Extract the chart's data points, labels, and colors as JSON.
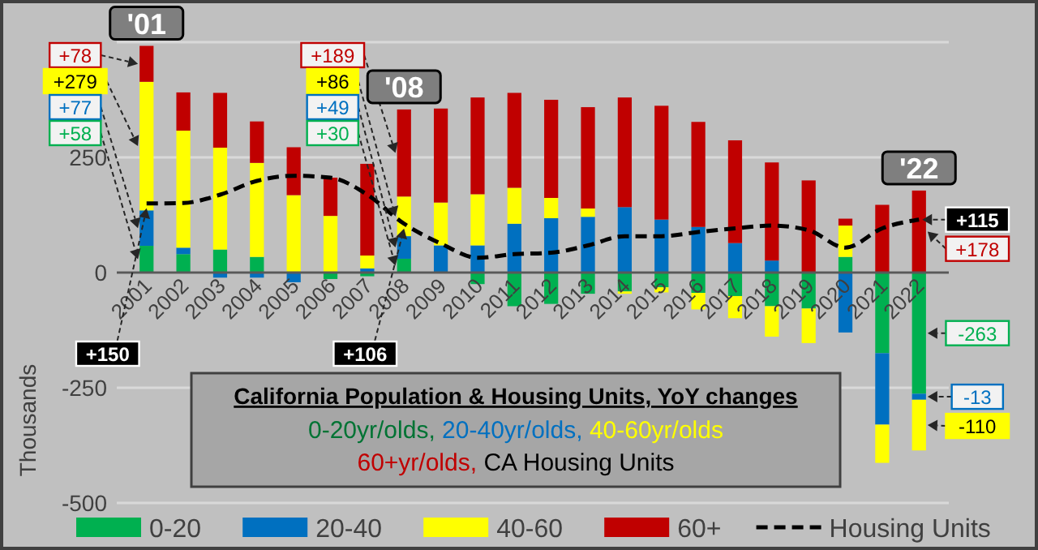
{
  "chart_data": {
    "type": "bar",
    "stacked": true,
    "title": "California Population & Housing Units, YoY changes",
    "ylabel": "Thousands",
    "categories": [
      "2001",
      "2002",
      "2003",
      "2004",
      "2005",
      "2006",
      "2007",
      "2008",
      "2009",
      "2010",
      "2011",
      "2012",
      "2013",
      "2014",
      "2015",
      "2016",
      "2017",
      "2018",
      "2019",
      "2020",
      "2021",
      "2022"
    ],
    "series": [
      {
        "name": "0-20",
        "color": "#00b050",
        "values": [
          58,
          40,
          50,
          34,
          0,
          -14,
          -8,
          30,
          0,
          -25,
          -73,
          -68,
          -46,
          -41,
          -32,
          -44,
          -51,
          -73,
          -78,
          34,
          -175,
          -263
        ],
        "value_labels": [
          "+58",
          null,
          null,
          null,
          null,
          null,
          null,
          "+30",
          null,
          null,
          null,
          null,
          null,
          null,
          null,
          null,
          null,
          null,
          null,
          null,
          null,
          "-263"
        ]
      },
      {
        "name": "20-40",
        "color": "#0070c0",
        "values": [
          77,
          14,
          -11,
          -11,
          -21,
          0,
          9,
          49,
          59,
          59,
          106,
          118,
          121,
          142,
          115,
          99,
          64,
          26,
          0,
          -130,
          -155,
          -13
        ],
        "value_labels": [
          "+77",
          null,
          null,
          null,
          null,
          null,
          null,
          "+49",
          null,
          null,
          null,
          null,
          null,
          null,
          null,
          null,
          null,
          null,
          null,
          null,
          null,
          "-13"
        ]
      },
      {
        "name": "40-60",
        "color": "#ffff00",
        "values": [
          279,
          254,
          221,
          204,
          168,
          123,
          28,
          86,
          93,
          111,
          78,
          44,
          18,
          -5,
          -11,
          -36,
          -48,
          -66,
          -75,
          68,
          -83,
          -110
        ],
        "value_labels": [
          "+279",
          null,
          null,
          null,
          null,
          null,
          null,
          "+86",
          null,
          null,
          null,
          null,
          null,
          null,
          null,
          null,
          null,
          null,
          null,
          null,
          null,
          "-110"
        ]
      },
      {
        "name": "60+",
        "color": "#c00000",
        "values": [
          78,
          83,
          119,
          90,
          104,
          83,
          199,
          189,
          204,
          210,
          206,
          213,
          220,
          238,
          247,
          228,
          223,
          213,
          200,
          15,
          147,
          178
        ],
        "value_labels": [
          "+78",
          null,
          null,
          null,
          null,
          null,
          null,
          "+189",
          null,
          null,
          null,
          null,
          null,
          null,
          null,
          null,
          null,
          null,
          null,
          null,
          null,
          "+178"
        ]
      },
      {
        "name": "Housing Units",
        "type": "line",
        "line_style": "dashed",
        "color": "#000000",
        "values": [
          150,
          151,
          169,
          199,
          210,
          206,
          169,
          106,
          63,
          32,
          40,
          43,
          59,
          79,
          79,
          88,
          96,
          102,
          92,
          54,
          96,
          115
        ],
        "value_labels": [
          "+150",
          null,
          null,
          null,
          null,
          null,
          null,
          "+106",
          null,
          null,
          null,
          null,
          null,
          null,
          null,
          null,
          null,
          null,
          null,
          null,
          null,
          "+115"
        ]
      }
    ],
    "ylim": [
      -500,
      500
    ],
    "yticks": [
      -500,
      -250,
      0,
      250,
      {
        "value": 500,
        "label": null
      }
    ],
    "grid": "y",
    "legend": "bottom",
    "annotations": [
      "0-20yr/olds, 20-40yr/olds, 40-60yr/olds",
      "60+yr/olds, CA Housing Units",
      {
        "text": "'01",
        "x": "2001",
        "y": 492
      },
      {
        "text": "'08",
        "x": "2008",
        "y": 354
      },
      {
        "text": "'22",
        "x": "2022",
        "y": 178
      }
    ]
  }
}
